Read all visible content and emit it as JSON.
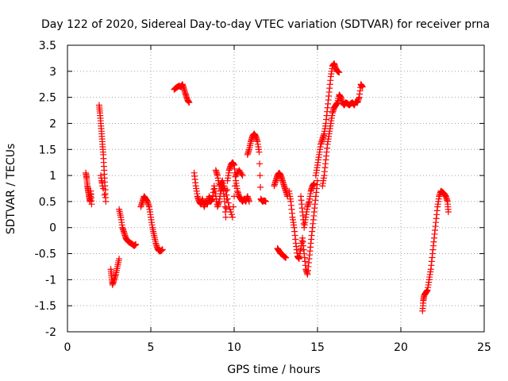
{
  "chart_data": {
    "type": "scatter",
    "title": "Day 122 of 2020, Sidereal Day-to-day VTEC variation (SDTVAR) for receiver prna",
    "xlabel": "GPS time / hours",
    "ylabel": "SDTVAR / TECUs",
    "xlim": [
      0,
      25
    ],
    "ylim": [
      -2,
      3.5
    ],
    "xticks": [
      "0",
      "5",
      "10",
      "15",
      "20",
      "25"
    ],
    "yticks": [
      "-2",
      "-1.5",
      "-1",
      "-0.5",
      "0",
      "0.5",
      "1",
      "1.5",
      "2",
      "2.5",
      "3",
      "3.5"
    ],
    "grid": true,
    "marker": "+",
    "color": "#ff0000",
    "series": [
      {
        "name": "SDTVAR",
        "segments": [
          [
            [
              1.1,
              1.05
            ],
            [
              1.15,
              0.95
            ],
            [
              1.2,
              0.8
            ],
            [
              1.25,
              0.7
            ],
            [
              1.3,
              0.6
            ],
            [
              1.35,
              0.5
            ],
            [
              1.4,
              0.7
            ],
            [
              1.45,
              0.45
            ]
          ],
          [
            [
              1.9,
              2.35
            ],
            [
              1.95,
              2.2
            ],
            [
              2.0,
              2.0
            ],
            [
              2.05,
              1.8
            ],
            [
              2.1,
              1.6
            ],
            [
              2.15,
              1.4
            ],
            [
              2.2,
              1.1
            ],
            [
              2.25,
              0.8
            ],
            [
              2.3,
              0.5
            ],
            [
              2.0,
              1.0
            ],
            [
              2.1,
              0.8
            ]
          ],
          [
            [
              2.6,
              -0.8
            ],
            [
              2.65,
              -0.95
            ],
            [
              2.7,
              -1.1
            ],
            [
              2.8,
              -1.0
            ],
            [
              2.9,
              -0.9
            ],
            [
              3.0,
              -0.75
            ],
            [
              3.1,
              -0.6
            ]
          ],
          [
            [
              3.1,
              0.35
            ],
            [
              3.2,
              0.2
            ],
            [
              3.3,
              0.0
            ],
            [
              3.4,
              -0.1
            ],
            [
              3.5,
              -0.2
            ],
            [
              3.6,
              -0.25
            ],
            [
              3.7,
              -0.28
            ],
            [
              3.8,
              -0.3
            ],
            [
              3.9,
              -0.32
            ],
            [
              4.0,
              -0.35
            ],
            [
              4.1,
              -0.32
            ]
          ],
          [
            [
              4.4,
              0.4
            ],
            [
              4.5,
              0.5
            ],
            [
              4.6,
              0.6
            ],
            [
              4.7,
              0.55
            ],
            [
              4.8,
              0.5
            ],
            [
              4.9,
              0.4
            ],
            [
              5.0,
              0.2
            ],
            [
              5.1,
              0.0
            ],
            [
              5.2,
              -0.15
            ],
            [
              5.3,
              -0.3
            ],
            [
              5.4,
              -0.4
            ],
            [
              5.5,
              -0.45
            ],
            [
              5.6,
              -0.45
            ],
            [
              5.7,
              -0.42
            ]
          ],
          [
            [
              6.4,
              2.65
            ],
            [
              6.5,
              2.68
            ],
            [
              6.6,
              2.7
            ],
            [
              6.7,
              2.72
            ],
            [
              6.8,
              2.7
            ],
            [
              6.9,
              2.75
            ],
            [
              7.0,
              2.65
            ],
            [
              7.1,
              2.55
            ],
            [
              7.2,
              2.45
            ],
            [
              7.3,
              2.4
            ]
          ],
          [
            [
              7.6,
              1.05
            ],
            [
              7.7,
              0.8
            ],
            [
              7.8,
              0.6
            ],
            [
              7.9,
              0.5
            ],
            [
              8.0,
              0.45
            ],
            [
              8.1,
              0.55
            ],
            [
              8.2,
              0.4
            ],
            [
              8.3,
              0.5
            ],
            [
              8.4,
              0.45
            ],
            [
              8.5,
              0.6
            ],
            [
              8.6,
              0.5
            ],
            [
              8.7,
              0.55
            ],
            [
              8.8,
              0.8
            ],
            [
              8.9,
              0.6
            ],
            [
              9.0,
              0.4
            ],
            [
              9.1,
              0.5
            ],
            [
              9.2,
              0.7
            ],
            [
              9.3,
              0.8
            ],
            [
              9.4,
              0.6
            ],
            [
              9.5,
              0.2
            ],
            [
              9.6,
              0.9
            ],
            [
              9.7,
              1.1
            ],
            [
              9.8,
              1.2
            ],
            [
              9.9,
              1.25
            ],
            [
              10.0,
              1.2
            ],
            [
              10.1,
              0.9
            ],
            [
              10.2,
              0.7
            ],
            [
              10.3,
              0.6
            ],
            [
              10.4,
              0.55
            ],
            [
              10.5,
              0.5
            ],
            [
              10.6,
              0.55
            ],
            [
              10.7,
              0.5
            ],
            [
              10.8,
              0.6
            ],
            [
              10.9,
              0.5
            ]
          ],
          [
            [
              8.9,
              1.1
            ],
            [
              9.0,
              1.0
            ],
            [
              9.1,
              0.8
            ],
            [
              9.3,
              0.9
            ],
            [
              9.5,
              0.7
            ],
            [
              9.7,
              0.4
            ],
            [
              9.9,
              0.2
            ],
            [
              10.1,
              1.0
            ],
            [
              10.3,
              1.1
            ],
            [
              10.5,
              1.0
            ]
          ],
          [
            [
              10.8,
              1.4
            ],
            [
              10.9,
              1.5
            ],
            [
              11.0,
              1.65
            ],
            [
              11.1,
              1.75
            ],
            [
              11.2,
              1.8
            ],
            [
              11.3,
              1.75
            ],
            [
              11.4,
              1.65
            ],
            [
              11.5,
              1.45
            ],
            [
              11.6,
              0.55
            ],
            [
              11.7,
              0.5
            ],
            [
              11.8,
              0.52
            ],
            [
              11.9,
              0.5
            ]
          ],
          [
            [
              12.4,
              0.8
            ],
            [
              12.5,
              0.9
            ],
            [
              12.6,
              1.0
            ],
            [
              12.7,
              1.05
            ],
            [
              12.8,
              1.0
            ],
            [
              12.9,
              0.9
            ],
            [
              13.0,
              0.8
            ],
            [
              13.1,
              0.7
            ],
            [
              13.2,
              0.6
            ]
          ],
          [
            [
              12.6,
              -0.4
            ],
            [
              12.7,
              -0.45
            ],
            [
              12.8,
              -0.5
            ],
            [
              12.9,
              -0.52
            ],
            [
              13.0,
              -0.55
            ],
            [
              13.1,
              -0.58
            ]
          ],
          [
            [
              13.3,
              0.7
            ],
            [
              13.4,
              0.5
            ],
            [
              13.5,
              0.2
            ],
            [
              13.6,
              0.0
            ],
            [
              13.7,
              -0.3
            ],
            [
              13.8,
              -0.55
            ],
            [
              13.9,
              -0.6
            ],
            [
              14.0,
              -0.4
            ],
            [
              14.1,
              -0.2
            ],
            [
              14.2,
              -0.5
            ],
            [
              14.3,
              -0.8
            ],
            [
              14.4,
              -0.9
            ],
            [
              14.5,
              -0.6
            ],
            [
              14.6,
              -0.3
            ],
            [
              14.7,
              0.0
            ],
            [
              14.8,
              0.3
            ],
            [
              14.9,
              0.6
            ],
            [
              15.0,
              0.9
            ]
          ],
          [
            [
              14.0,
              0.6
            ],
            [
              14.1,
              0.3
            ],
            [
              14.2,
              0.0
            ],
            [
              14.3,
              0.2
            ],
            [
              14.4,
              0.4
            ],
            [
              14.5,
              0.5
            ],
            [
              14.6,
              0.7
            ],
            [
              14.7,
              0.8
            ],
            [
              14.8,
              0.85
            ]
          ],
          [
            [
              14.9,
              1.0
            ],
            [
              15.0,
              1.2
            ],
            [
              15.1,
              1.4
            ],
            [
              15.2,
              1.6
            ],
            [
              15.3,
              1.7
            ],
            [
              15.4,
              1.8
            ],
            [
              15.5,
              2.0
            ],
            [
              15.6,
              2.3
            ],
            [
              15.7,
              2.6
            ],
            [
              15.8,
              2.9
            ],
            [
              15.9,
              3.1
            ],
            [
              16.0,
              3.15
            ],
            [
              16.1,
              3.05
            ],
            [
              16.2,
              3.0
            ],
            [
              16.3,
              2.98
            ]
          ],
          [
            [
              15.3,
              0.8
            ],
            [
              15.4,
              1.0
            ],
            [
              15.5,
              1.3
            ],
            [
              15.6,
              1.6
            ],
            [
              15.7,
              1.8
            ],
            [
              15.8,
              2.0
            ],
            [
              15.9,
              2.2
            ],
            [
              16.0,
              2.3
            ],
            [
              16.1,
              2.35
            ],
            [
              16.2,
              2.4
            ],
            [
              16.3,
              2.55
            ],
            [
              16.4,
              2.5
            ],
            [
              16.5,
              2.4
            ],
            [
              16.6,
              2.35
            ],
            [
              16.7,
              2.4
            ],
            [
              16.8,
              2.38
            ],
            [
              16.9,
              2.35
            ],
            [
              17.0,
              2.38
            ],
            [
              17.1,
              2.4
            ],
            [
              17.2,
              2.35
            ],
            [
              17.3,
              2.42
            ],
            [
              17.4,
              2.4
            ],
            [
              17.5,
              2.5
            ],
            [
              17.6,
              2.75
            ],
            [
              17.7,
              2.7
            ]
          ],
          [
            [
              21.3,
              -1.6
            ],
            [
              21.35,
              -1.4
            ],
            [
              21.4,
              -1.3
            ],
            [
              21.5,
              -1.25
            ],
            [
              21.6,
              -1.2
            ],
            [
              21.7,
              -1.0
            ],
            [
              21.8,
              -0.8
            ],
            [
              21.9,
              -0.5
            ],
            [
              22.0,
              -0.2
            ],
            [
              22.1,
              0.1
            ],
            [
              22.2,
              0.4
            ],
            [
              22.3,
              0.6
            ],
            [
              22.4,
              0.7
            ],
            [
              22.5,
              0.68
            ],
            [
              22.6,
              0.65
            ],
            [
              22.7,
              0.6
            ],
            [
              22.8,
              0.5
            ],
            [
              22.85,
              0.3
            ]
          ]
        ]
      }
    ]
  }
}
